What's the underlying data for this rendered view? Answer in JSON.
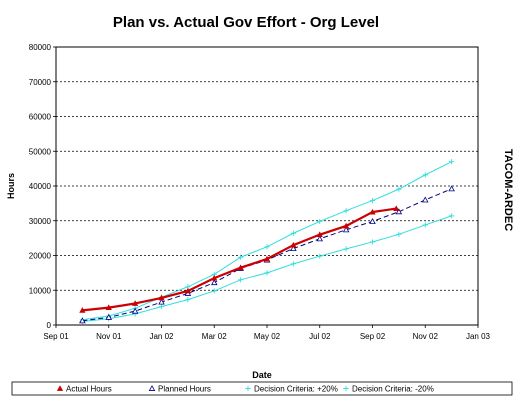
{
  "chart_data": {
    "type": "line",
    "title": "Plan vs. Actual Gov Effort - Org Level",
    "xlabel": "Date",
    "ylabel": "Hours",
    "side_label": "TACOM-ARDEC",
    "ylim": [
      0,
      80000
    ],
    "y_ticks": [
      0,
      10000,
      20000,
      30000,
      40000,
      50000,
      60000,
      70000,
      80000
    ],
    "x_ticks": [
      "Sep 01",
      "Nov 01",
      "Jan 02",
      "Mar 02",
      "May 02",
      "Jul 02",
      "Sep 02",
      "Nov 02",
      "Jan 03"
    ],
    "xlim": [
      0,
      16
    ],
    "grid": true,
    "legend_position": "bottom",
    "series": [
      {
        "name": "Actual Hours",
        "color": "#cc0000",
        "marker": "filled-triangle",
        "x": [
          1,
          2,
          3,
          4,
          5,
          6,
          7,
          8,
          9,
          10,
          11,
          12,
          12.9
        ],
        "y": [
          4200,
          5000,
          6200,
          7800,
          9800,
          13500,
          16500,
          19000,
          23000,
          26000,
          28500,
          32500,
          33500
        ]
      },
      {
        "name": "Planned Hours",
        "color": "#000080",
        "marker": "open-triangle",
        "x": [
          1,
          2,
          3,
          4,
          5,
          6,
          7,
          8,
          9,
          10,
          11,
          12,
          13,
          14,
          15
        ],
        "y": [
          1200,
          2200,
          4000,
          6600,
          9100,
          12200,
          16300,
          18700,
          22000,
          24800,
          27400,
          29800,
          32600,
          36000,
          39200
        ]
      },
      {
        "name": "Decision Criteria: +20%",
        "color": "#33dddd",
        "marker": "plus",
        "x": [
          1,
          2,
          3,
          4,
          5,
          6,
          7,
          8,
          9,
          10,
          11,
          12,
          13,
          14,
          15
        ],
        "y": [
          1500,
          2600,
          4800,
          8000,
          11000,
          14600,
          19500,
          22500,
          26400,
          29800,
          32900,
          35800,
          39100,
          43200,
          47000
        ]
      },
      {
        "name": "Decision Criteria: -20%",
        "color": "#33dddd",
        "marker": "plus",
        "x": [
          1,
          2,
          3,
          4,
          5,
          6,
          7,
          8,
          9,
          10,
          11,
          12,
          13,
          14,
          15
        ],
        "y": [
          1000,
          1800,
          3200,
          5300,
          7300,
          9800,
          13000,
          15000,
          17600,
          19800,
          21900,
          23900,
          26100,
          28800,
          31400
        ]
      }
    ]
  }
}
